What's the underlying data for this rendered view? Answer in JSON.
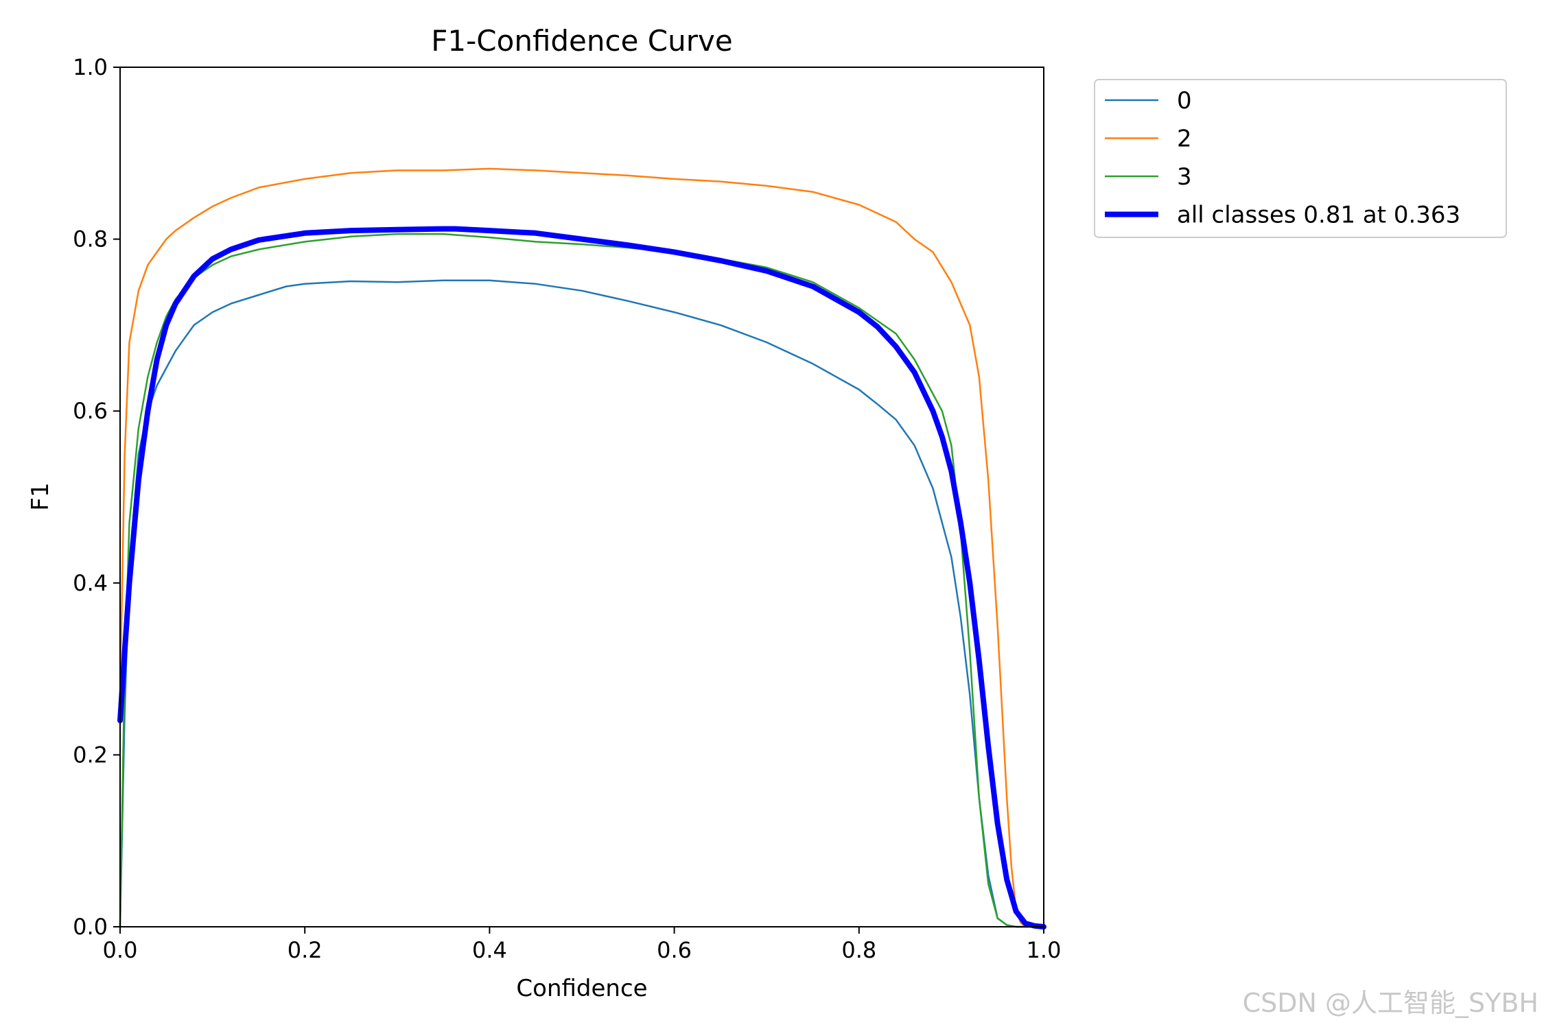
{
  "chart_data": {
    "type": "line",
    "title": "F1-Confidence Curve",
    "xlabel": "Confidence",
    "ylabel": "F1",
    "xlim": [
      0.0,
      1.0
    ],
    "ylim": [
      0.0,
      1.0
    ],
    "xticks": [
      "0.0",
      "0.2",
      "0.4",
      "0.6",
      "0.8",
      "1.0"
    ],
    "yticks": [
      "0.0",
      "0.2",
      "0.4",
      "0.6",
      "0.8",
      "1.0"
    ],
    "grid": false,
    "legend_position": "outside-top-right",
    "series": [
      {
        "name": "0",
        "color": "#1f77b4",
        "x": [
          0.0,
          0.005,
          0.01,
          0.02,
          0.03,
          0.04,
          0.05,
          0.06,
          0.07,
          0.08,
          0.1,
          0.12,
          0.15,
          0.18,
          0.2,
          0.25,
          0.3,
          0.35,
          0.4,
          0.45,
          0.5,
          0.55,
          0.6,
          0.65,
          0.7,
          0.75,
          0.8,
          0.82,
          0.84,
          0.86,
          0.88,
          0.89,
          0.9,
          0.91,
          0.92,
          0.93,
          0.94,
          0.95,
          0.96,
          0.97,
          0.98,
          1.0
        ],
        "y": [
          0.0,
          0.25,
          0.42,
          0.55,
          0.6,
          0.63,
          0.65,
          0.67,
          0.685,
          0.7,
          0.715,
          0.725,
          0.735,
          0.745,
          0.748,
          0.751,
          0.75,
          0.752,
          0.752,
          0.748,
          0.74,
          0.728,
          0.715,
          0.7,
          0.68,
          0.655,
          0.625,
          0.608,
          0.59,
          0.56,
          0.51,
          0.47,
          0.43,
          0.36,
          0.27,
          0.15,
          0.06,
          0.01,
          0.002,
          0.0,
          0.0,
          0.0
        ]
      },
      {
        "name": "2",
        "color": "#ff7f0e",
        "x": [
          0.0,
          0.005,
          0.01,
          0.02,
          0.03,
          0.04,
          0.05,
          0.06,
          0.08,
          0.1,
          0.12,
          0.15,
          0.2,
          0.25,
          0.3,
          0.35,
          0.4,
          0.45,
          0.5,
          0.55,
          0.6,
          0.65,
          0.7,
          0.75,
          0.8,
          0.82,
          0.84,
          0.86,
          0.88,
          0.9,
          0.92,
          0.93,
          0.94,
          0.95,
          0.96,
          0.965,
          0.97,
          0.975,
          0.98,
          1.0
        ],
        "y": [
          0.27,
          0.55,
          0.68,
          0.74,
          0.77,
          0.785,
          0.8,
          0.81,
          0.825,
          0.838,
          0.848,
          0.86,
          0.87,
          0.877,
          0.88,
          0.88,
          0.882,
          0.88,
          0.877,
          0.874,
          0.87,
          0.867,
          0.862,
          0.855,
          0.84,
          0.83,
          0.82,
          0.8,
          0.785,
          0.75,
          0.7,
          0.64,
          0.52,
          0.35,
          0.15,
          0.07,
          0.02,
          0.005,
          0.0,
          0.0
        ]
      },
      {
        "name": "3",
        "color": "#2ca02c",
        "x": [
          0.0,
          0.005,
          0.01,
          0.02,
          0.03,
          0.04,
          0.05,
          0.06,
          0.08,
          0.1,
          0.12,
          0.15,
          0.2,
          0.25,
          0.3,
          0.35,
          0.4,
          0.45,
          0.5,
          0.55,
          0.6,
          0.65,
          0.7,
          0.75,
          0.8,
          0.82,
          0.84,
          0.86,
          0.88,
          0.89,
          0.9,
          0.91,
          0.92,
          0.93,
          0.94,
          0.95,
          0.96,
          0.97,
          0.98,
          1.0
        ],
        "y": [
          0.0,
          0.3,
          0.47,
          0.58,
          0.64,
          0.68,
          0.71,
          0.73,
          0.755,
          0.77,
          0.78,
          0.788,
          0.797,
          0.803,
          0.806,
          0.806,
          0.802,
          0.797,
          0.794,
          0.79,
          0.785,
          0.777,
          0.767,
          0.75,
          0.72,
          0.705,
          0.69,
          0.66,
          0.62,
          0.6,
          0.56,
          0.46,
          0.32,
          0.15,
          0.05,
          0.01,
          0.002,
          0.0,
          0.0,
          0.0
        ]
      },
      {
        "name": "all classes 0.81 at 0.363",
        "color": "#0000ff",
        "bold": true,
        "x": [
          0.0,
          0.005,
          0.01,
          0.02,
          0.03,
          0.04,
          0.05,
          0.06,
          0.08,
          0.1,
          0.12,
          0.15,
          0.2,
          0.25,
          0.3,
          0.35,
          0.363,
          0.4,
          0.45,
          0.5,
          0.55,
          0.6,
          0.65,
          0.7,
          0.75,
          0.8,
          0.82,
          0.84,
          0.86,
          0.88,
          0.89,
          0.9,
          0.91,
          0.92,
          0.93,
          0.94,
          0.95,
          0.96,
          0.97,
          0.98,
          0.99,
          1.0
        ],
        "y": [
          0.24,
          0.32,
          0.4,
          0.52,
          0.6,
          0.66,
          0.7,
          0.725,
          0.757,
          0.777,
          0.788,
          0.799,
          0.807,
          0.81,
          0.811,
          0.812,
          0.812,
          0.81,
          0.807,
          0.8,
          0.793,
          0.785,
          0.775,
          0.763,
          0.745,
          0.715,
          0.698,
          0.675,
          0.645,
          0.6,
          0.57,
          0.53,
          0.47,
          0.4,
          0.31,
          0.21,
          0.12,
          0.055,
          0.018,
          0.004,
          0.001,
          0.0
        ]
      }
    ]
  },
  "watermark": "CSDN @人工智能_SYBH"
}
